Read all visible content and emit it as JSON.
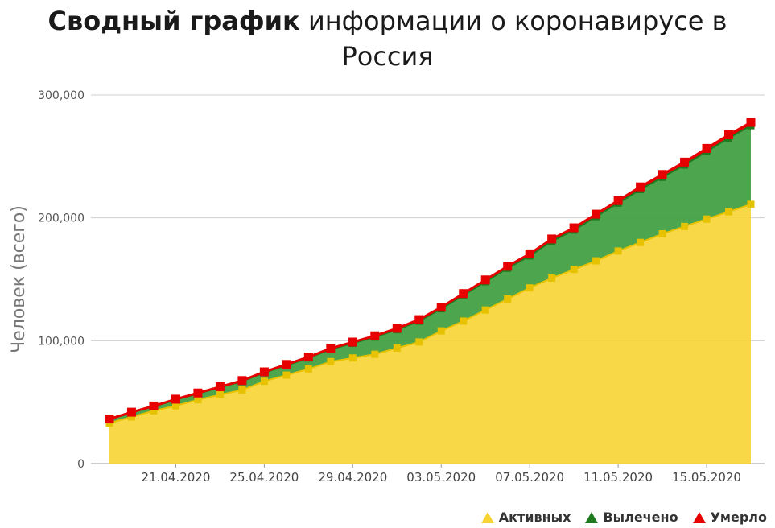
{
  "title": {
    "bold": "Сводный график",
    "rest_line1": "информации о коронавирусе в",
    "rest_line2": "Россия"
  },
  "chart_data": {
    "type": "area",
    "stacked": true,
    "ylabel": "Человек (всего)",
    "ylim": [
      0,
      300000
    ],
    "y_ticks": [
      "0",
      "100,000",
      "200,000",
      "300,000"
    ],
    "x": [
      "18.04.2020",
      "19.04.2020",
      "20.04.2020",
      "21.04.2020",
      "22.04.2020",
      "23.04.2020",
      "24.04.2020",
      "25.04.2020",
      "26.04.2020",
      "27.04.2020",
      "28.04.2020",
      "29.04.2020",
      "30.04.2020",
      "01.05.2020",
      "02.05.2020",
      "03.05.2020",
      "04.05.2020",
      "05.05.2020",
      "06.05.2020",
      "07.05.2020",
      "08.05.2020",
      "09.05.2020",
      "10.05.2020",
      "11.05.2020",
      "12.05.2020",
      "13.05.2020",
      "14.05.2020",
      "15.05.2020",
      "16.05.2020",
      "17.05.2020"
    ],
    "x_tick_labels": [
      "21.04.2020",
      "25.04.2020",
      "29.04.2020",
      "03.05.2020",
      "07.05.2020",
      "11.05.2020",
      "15.05.2020"
    ],
    "grid": true,
    "legend_position": "bottom-right",
    "series": [
      {
        "name": "Активных",
        "color": "#f7d433",
        "marker_color": "#e6c200",
        "values": [
          33000,
          38000,
          43000,
          47000,
          52000,
          56000,
          60000,
          67000,
          72000,
          77000,
          83000,
          86000,
          89000,
          94000,
          99000,
          108000,
          116000,
          125000,
          134000,
          143000,
          151000,
          158000,
          165000,
          173000,
          180000,
          187000,
          193000,
          199000,
          205000,
          211000
        ]
      },
      {
        "name": "Вылечено",
        "color": "#3a9c3a",
        "marker_color": "#1f7a1f",
        "values": [
          3000,
          3500,
          3500,
          5000,
          5000,
          6000,
          7000,
          7000,
          8000,
          9000,
          10000,
          12000,
          14000,
          15000,
          17000,
          18000,
          21000,
          23000,
          25000,
          26000,
          30000,
          32000,
          36000,
          39000,
          43000,
          46000,
          50000,
          55000,
          60000,
          64000
        ]
      },
      {
        "name": "Умерло",
        "color": "#e60000",
        "marker_color": "#e60000",
        "values": [
          300,
          350,
          400,
          450,
          500,
          550,
          600,
          650,
          700,
          750,
          800,
          900,
          1000,
          1100,
          1200,
          1300,
          1400,
          1500,
          1600,
          1700,
          1800,
          1900,
          2000,
          2100,
          2200,
          2300,
          2400,
          2500,
          2600,
          2700
        ]
      }
    ]
  }
}
